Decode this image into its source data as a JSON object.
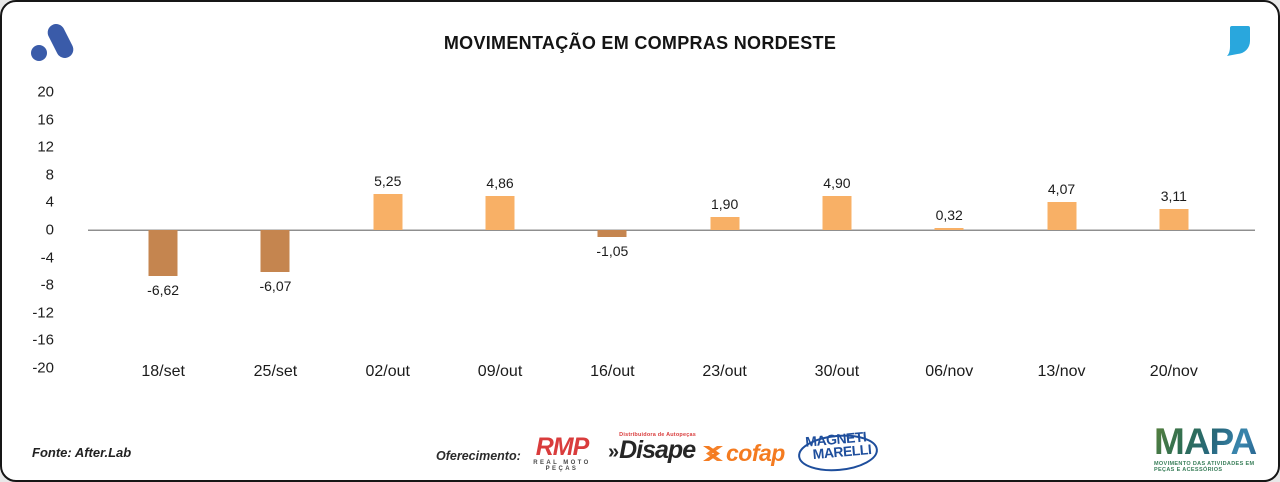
{
  "header": {
    "title": "MOVIMENTAÇÃO EM COMPRAS NORDESTE",
    "brand_logo_color": "#3A5BA9",
    "quote_icon_color": "#29A7DD"
  },
  "chart_data": {
    "type": "bar",
    "title": "MOVIMENTAÇÃO EM COMPRAS NORDESTE",
    "categories": [
      "18/set",
      "25/set",
      "02/out",
      "09/out",
      "16/out",
      "23/out",
      "30/out",
      "06/nov",
      "13/nov",
      "20/nov"
    ],
    "values": [
      -6.62,
      -6.07,
      5.25,
      4.86,
      -1.05,
      1.9,
      4.9,
      0.32,
      4.07,
      3.11
    ],
    "value_labels": [
      "-6,62",
      "-6,07",
      "5,25",
      "4,86",
      "-1,05",
      "1,90",
      "4,90",
      "0,32",
      "4,07",
      "3,11"
    ],
    "yticks": [
      20,
      16,
      12,
      8,
      4,
      0,
      -4,
      -8,
      -12,
      -16,
      -20
    ],
    "ylim": [
      -20,
      20
    ],
    "xlabel": "",
    "ylabel": "",
    "grid": false,
    "legend": false,
    "bar_color_positive": "#F8B066",
    "bar_color_negative": "#C5854F",
    "zero_line_color": "#8F8F8F"
  },
  "footer": {
    "source": "Fonte: After.Lab",
    "sponsor_label": "Oferecimento:",
    "rmp": {
      "main": "RMP",
      "subtitle": "REAL MOTO PEÇAS",
      "color": "#D93C3C"
    },
    "disape": {
      "prefix": "»",
      "main": "Disape",
      "subtitle": "Distribuidora de Autopeças",
      "color": "#262626"
    },
    "cofap": {
      "main": "cofap",
      "color": "#F47B20"
    },
    "magneti": {
      "line1": "MAGNETI",
      "line2": "MARELLI",
      "color": "#1E4E9C"
    },
    "mapa": {
      "main": "MAPA",
      "tagline": "MOVIMENTO DAS ATIVIDADES EM PEÇAS E ACESSÓRIOS"
    }
  }
}
